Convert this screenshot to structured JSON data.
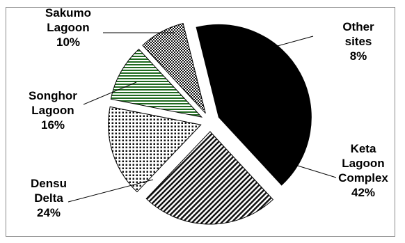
{
  "chart_data": {
    "type": "pie",
    "exploded": true,
    "slices": [
      {
        "name_lines": [
          "Keta",
          "Lagoon",
          "Complex"
        ],
        "value": 42,
        "value_label": "42%",
        "pattern": "solid-black"
      },
      {
        "name_lines": [
          "Densu",
          "Delta"
        ],
        "value": 24,
        "value_label": "24%",
        "pattern": "diagonal-stripes"
      },
      {
        "name_lines": [
          "Songhor",
          "Lagoon"
        ],
        "value": 16,
        "value_label": "16%",
        "pattern": "dots"
      },
      {
        "name_lines": [
          "Sakumo",
          "Lagoon"
        ],
        "value": 10,
        "value_label": "10%",
        "pattern": "horizontal-green-stripes"
      },
      {
        "name_lines": [
          "Other",
          "sites"
        ],
        "value": 8,
        "value_label": "8%",
        "pattern": "crosshatch"
      }
    ]
  }
}
